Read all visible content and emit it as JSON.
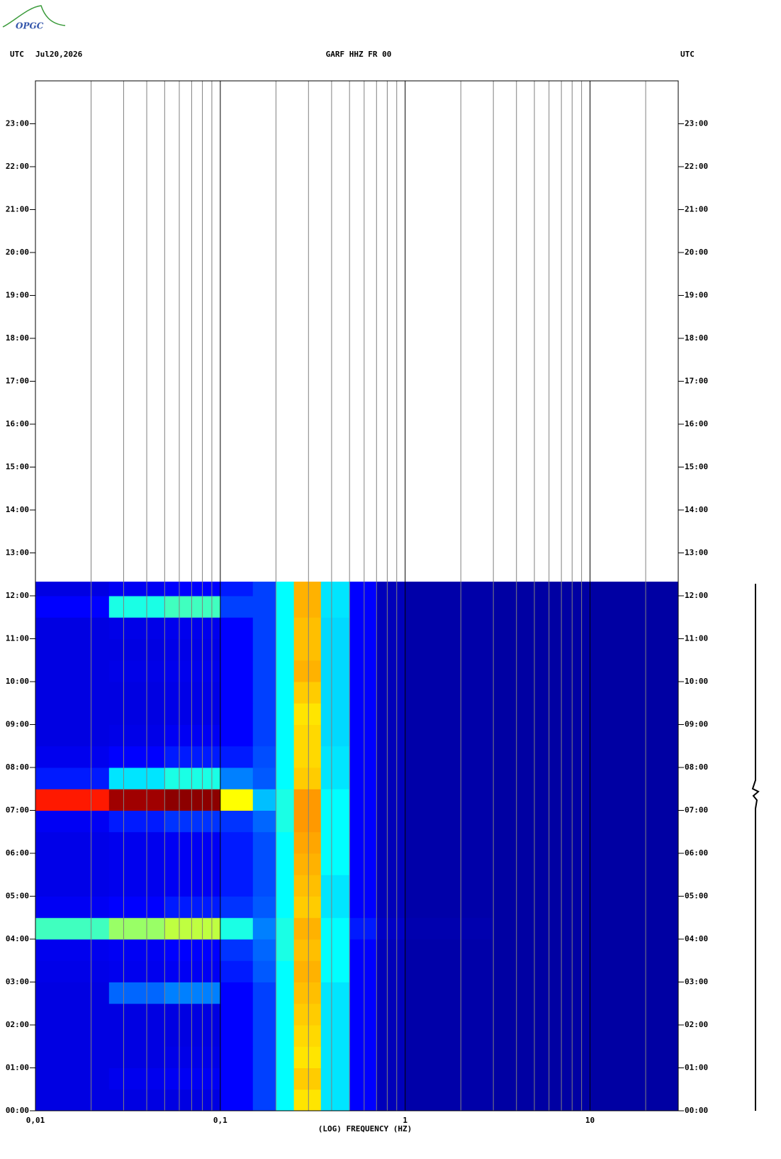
{
  "logo": "OPGC",
  "header": {
    "left_zone": "UTC",
    "date": "Jul20,2026",
    "station": "GARF HHZ FR 00",
    "right_zone": "UTC"
  },
  "chart_data": {
    "type": "spectrogram",
    "x_label": "(LOG) FREQUENCY (HZ)",
    "x_scale": "log",
    "xlim": [
      0.01,
      30
    ],
    "xticks": [
      {
        "value": 0.01,
        "label": "0,01"
      },
      {
        "value": 0.1,
        "label": "0,1"
      },
      1,
      10
    ],
    "xgrid_minor": [
      0.02,
      0.03,
      0.04,
      0.05,
      0.06,
      0.07,
      0.08,
      0.09,
      0.2,
      0.3,
      0.4,
      0.5,
      0.6,
      0.7,
      0.8,
      0.9,
      2,
      3,
      4,
      5,
      6,
      7,
      8,
      9,
      20
    ],
    "ylim": [
      0,
      24
    ],
    "yticks": [
      {
        "value": 0,
        "label": "00:00"
      },
      {
        "value": 1,
        "label": "01:00"
      },
      {
        "value": 2,
        "label": "02:00"
      },
      {
        "value": 3,
        "label": "03:00"
      },
      {
        "value": 4,
        "label": "04:00"
      },
      {
        "value": 5,
        "label": "05:00"
      },
      {
        "value": 6,
        "label": "06:00"
      },
      {
        "value": 7,
        "label": "07:00"
      },
      {
        "value": 8,
        "label": "08:00"
      },
      {
        "value": 9,
        "label": "09:00"
      },
      {
        "value": 10,
        "label": "10:00"
      },
      {
        "value": 11,
        "label": "11:00"
      },
      {
        "value": 12,
        "label": "12:00"
      },
      {
        "value": 13,
        "label": "13:00"
      },
      {
        "value": 14,
        "label": "14:00"
      },
      {
        "value": 15,
        "label": "15:00"
      },
      {
        "value": 16,
        "label": "16:00"
      },
      {
        "value": 17,
        "label": "17:00"
      },
      {
        "value": 18,
        "label": "18:00"
      },
      {
        "value": 19,
        "label": "19:00"
      },
      {
        "value": 20,
        "label": "20:00"
      },
      {
        "value": 21,
        "label": "21:00"
      },
      {
        "value": 22,
        "label": "22:00"
      },
      {
        "value": 23,
        "label": "23:00"
      }
    ],
    "colormap": [
      "#00008c",
      "#0000ff",
      "#00ffff",
      "#ffff00",
      "#ff0000",
      "#800000"
    ],
    "x_edges": [
      0.01,
      0.025,
      0.05,
      0.1,
      0.15,
      0.2,
      0.25,
      0.35,
      0.5,
      0.7,
      1,
      3,
      30
    ],
    "y_edges": [
      0,
      0.5,
      1,
      1.5,
      2,
      2.5,
      3,
      3.5,
      4,
      4.5,
      5,
      5.5,
      6,
      6.5,
      7,
      7.5,
      8,
      8.5,
      9,
      9.5,
      10,
      10.5,
      11,
      11.5,
      12,
      12.33
    ],
    "values": [
      [
        0.15,
        0.15,
        0.15,
        0.2,
        0.25,
        0.4,
        0.62,
        0.38,
        0.2,
        0.08,
        0.05,
        0.04
      ],
      [
        0.15,
        0.17,
        0.18,
        0.2,
        0.25,
        0.4,
        0.64,
        0.38,
        0.2,
        0.08,
        0.05,
        0.04
      ],
      [
        0.15,
        0.15,
        0.16,
        0.2,
        0.25,
        0.4,
        0.62,
        0.38,
        0.2,
        0.08,
        0.05,
        0.04
      ],
      [
        0.15,
        0.15,
        0.15,
        0.2,
        0.25,
        0.4,
        0.63,
        0.38,
        0.2,
        0.08,
        0.05,
        0.04
      ],
      [
        0.15,
        0.15,
        0.15,
        0.2,
        0.25,
        0.4,
        0.64,
        0.38,
        0.2,
        0.08,
        0.05,
        0.04
      ],
      [
        0.15,
        0.28,
        0.3,
        0.2,
        0.25,
        0.4,
        0.65,
        0.38,
        0.2,
        0.08,
        0.05,
        0.04
      ],
      [
        0.16,
        0.17,
        0.18,
        0.22,
        0.27,
        0.4,
        0.66,
        0.4,
        0.2,
        0.08,
        0.05,
        0.04
      ],
      [
        0.17,
        0.18,
        0.2,
        0.24,
        0.28,
        0.42,
        0.65,
        0.4,
        0.2,
        0.08,
        0.05,
        0.04
      ],
      [
        0.45,
        0.52,
        0.55,
        0.42,
        0.3,
        0.42,
        0.66,
        0.4,
        0.22,
        0.1,
        0.06,
        0.04
      ],
      [
        0.18,
        0.2,
        0.22,
        0.24,
        0.27,
        0.4,
        0.64,
        0.38,
        0.2,
        0.08,
        0.05,
        0.04
      ],
      [
        0.16,
        0.17,
        0.18,
        0.22,
        0.26,
        0.4,
        0.65,
        0.38,
        0.2,
        0.08,
        0.05,
        0.04
      ],
      [
        0.16,
        0.17,
        0.18,
        0.22,
        0.26,
        0.4,
        0.66,
        0.4,
        0.2,
        0.08,
        0.05,
        0.04
      ],
      [
        0.16,
        0.17,
        0.18,
        0.22,
        0.26,
        0.4,
        0.67,
        0.4,
        0.2,
        0.08,
        0.05,
        0.04
      ],
      [
        0.18,
        0.22,
        0.24,
        0.24,
        0.28,
        0.42,
        0.68,
        0.4,
        0.2,
        0.08,
        0.05,
        0.04
      ],
      [
        0.78,
        0.95,
        0.98,
        0.6,
        0.35,
        0.42,
        0.68,
        0.4,
        0.2,
        0.08,
        0.05,
        0.04
      ],
      [
        0.22,
        0.38,
        0.42,
        0.3,
        0.27,
        0.4,
        0.64,
        0.38,
        0.2,
        0.08,
        0.05,
        0.04
      ],
      [
        0.17,
        0.2,
        0.22,
        0.22,
        0.26,
        0.4,
        0.63,
        0.38,
        0.2,
        0.08,
        0.05,
        0.04
      ],
      [
        0.15,
        0.16,
        0.18,
        0.2,
        0.25,
        0.4,
        0.63,
        0.37,
        0.2,
        0.08,
        0.05,
        0.04
      ],
      [
        0.15,
        0.15,
        0.16,
        0.2,
        0.25,
        0.4,
        0.62,
        0.37,
        0.2,
        0.08,
        0.05,
        0.04
      ],
      [
        0.15,
        0.15,
        0.16,
        0.2,
        0.25,
        0.4,
        0.64,
        0.37,
        0.2,
        0.08,
        0.05,
        0.04
      ],
      [
        0.15,
        0.16,
        0.17,
        0.2,
        0.25,
        0.4,
        0.66,
        0.37,
        0.2,
        0.08,
        0.05,
        0.04
      ],
      [
        0.15,
        0.15,
        0.16,
        0.2,
        0.25,
        0.4,
        0.65,
        0.37,
        0.2,
        0.08,
        0.05,
        0.04
      ],
      [
        0.15,
        0.16,
        0.17,
        0.2,
        0.25,
        0.4,
        0.65,
        0.37,
        0.2,
        0.08,
        0.05,
        0.04
      ],
      [
        0.2,
        0.42,
        0.45,
        0.25,
        0.25,
        0.4,
        0.66,
        0.38,
        0.2,
        0.08,
        0.05,
        0.04
      ],
      [
        0.15,
        0.18,
        0.2,
        0.22,
        0.25,
        0.4,
        0.66,
        0.38,
        0.2,
        0.08,
        0.05,
        0.04
      ]
    ]
  }
}
